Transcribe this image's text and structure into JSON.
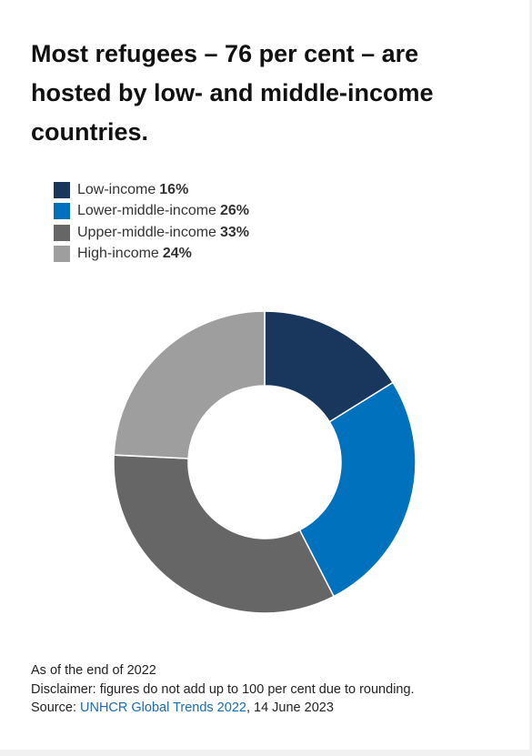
{
  "title": "Most refugees – 76 per cent – are hosted by low- and middle-income countries.",
  "chart_data": {
    "type": "pie",
    "donut": true,
    "categories": [
      "Low-income",
      "Lower-middle-income",
      "Upper-middle-income",
      "High-income"
    ],
    "values": [
      16,
      26,
      33,
      24
    ],
    "value_labels": [
      "16%",
      "26%",
      "33%",
      "24%"
    ],
    "colors": [
      "#19365d",
      "#0071bc",
      "#666666",
      "#9e9e9e"
    ],
    "legend_position": "top-left"
  },
  "footer": {
    "as_of": "As of the end of 2022",
    "disclaimer": "Disclaimer: figures do not add up to 100 per cent due to rounding.",
    "source_prefix": "Source: ",
    "source_link": "UNHCR Global Trends 2022",
    "source_suffix": ", 14 June 2023"
  }
}
